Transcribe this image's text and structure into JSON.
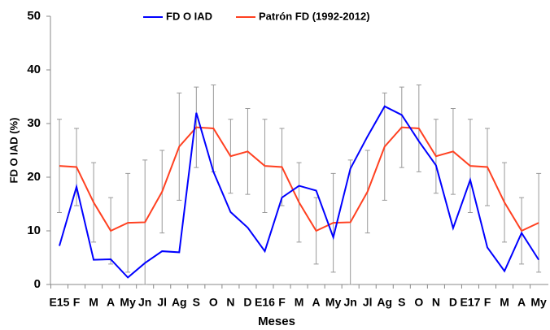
{
  "chart_data": {
    "type": "line",
    "y_label": "FD O IAD (%)",
    "x_label": "Meses",
    "categories": [
      "E15",
      "F",
      "M",
      "A",
      "My",
      "Jn",
      "Jl",
      "Ag",
      "S",
      "O",
      "N",
      "D",
      "E16",
      "F",
      "M",
      "A",
      "My",
      "Jn",
      "Jl",
      "Ag",
      "S",
      "O",
      "N",
      "D",
      "E17",
      "F",
      "M",
      "A",
      "My"
    ],
    "ylim": [
      0,
      50
    ],
    "yticks": [
      0,
      10,
      20,
      30,
      40,
      50
    ],
    "legend": "top",
    "series": [
      {
        "name": "FD O IAD",
        "color": "#0000ff",
        "values": [
          7.2,
          18.2,
          4.6,
          4.7,
          1.3,
          4.0,
          6.2,
          6.0,
          32.0,
          21.0,
          13.5,
          10.6,
          6.2,
          16.2,
          18.4,
          17.5,
          8.8,
          21.6,
          27.6,
          33.2,
          31.6,
          26.7,
          22.2,
          10.5,
          19.5,
          6.9,
          2.5,
          9.6,
          4.6
        ]
      },
      {
        "name": "Patrón FD (1992-2012)",
        "color": "#ff4020",
        "values": [
          22.1,
          21.9,
          15.3,
          10.0,
          11.5,
          11.6,
          17.3,
          25.7,
          29.3,
          29.1,
          23.9,
          24.8,
          22.1,
          21.9,
          15.3,
          10.0,
          11.5,
          11.6,
          17.3,
          25.7,
          29.3,
          29.1,
          23.9,
          24.8,
          22.1,
          21.9,
          15.3,
          10.0,
          11.5
        ],
        "errors": [
          8.7,
          7.2,
          7.4,
          6.2,
          9.2,
          11.6,
          7.7,
          10.0,
          7.5,
          8.1,
          6.9,
          8.0,
          8.7,
          7.2,
          7.4,
          6.2,
          9.2,
          11.6,
          7.7,
          10.0,
          7.5,
          8.1,
          6.9,
          8.0,
          8.7,
          7.2,
          7.4,
          6.2,
          9.2
        ]
      }
    ]
  }
}
